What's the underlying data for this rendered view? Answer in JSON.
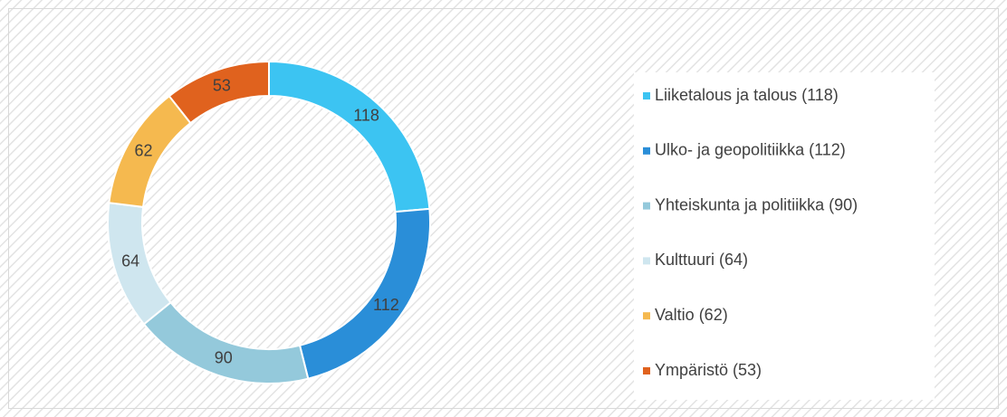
{
  "chart_data": {
    "type": "donut",
    "categories": [
      "Liiketalous ja talous  (118)",
      "Ulko- ja geopolitiikka  (112)",
      "Yhteiskunta ja politiikka (90)",
      "Kulttuuri (64)",
      "Valtio (62)",
      "Ympäristö (53)"
    ],
    "values": [
      118,
      112,
      90,
      64,
      62,
      53
    ],
    "colors": [
      "#3cc4f2",
      "#2a8ed8",
      "#94c9db",
      "#cfe6ef",
      "#f5b94f",
      "#e0621e"
    ],
    "legend": "right"
  }
}
